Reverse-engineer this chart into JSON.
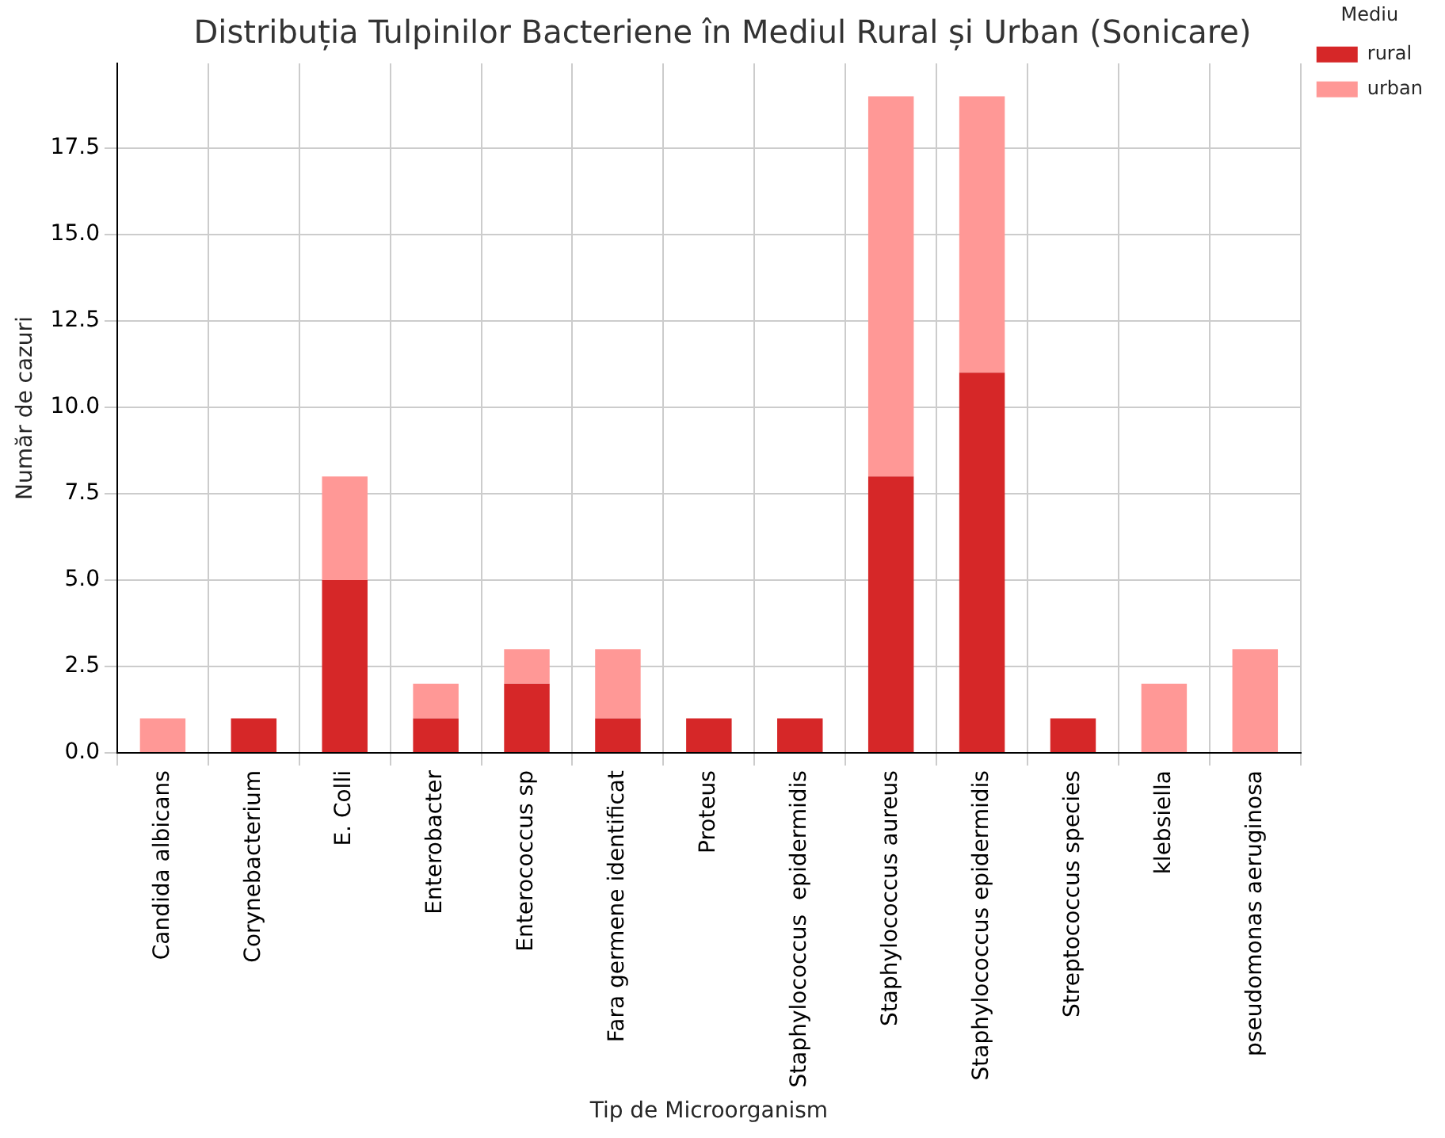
{
  "chart_data": {
    "type": "bar",
    "title": "Distribuția Tulpinilor Bacteriene în Mediul Rural și Urban (Sonicare)",
    "xlabel": "Tip de Microorganism",
    "ylabel": "Număr de cazuri",
    "legend_title": "Mediu",
    "categories": [
      "Candida albicans",
      "Corynebacterium",
      "E. Colli",
      "Enterobacter",
      "Enterococcus sp",
      "Fara germene identificat",
      "Proteus",
      "Staphylococcus  epidermidis",
      "Staphylococcus aureus",
      "Staphylococcus epidermidis",
      "Streptococcus species",
      "klebsiella",
      "pseudomonas aeruginosa"
    ],
    "series": [
      {
        "name": "rural",
        "color": "#d62728",
        "values": [
          0,
          1,
          5,
          1,
          2,
          1,
          1,
          1,
          8,
          11,
          1,
          0,
          0
        ]
      },
      {
        "name": "urban",
        "color": "#ff9896",
        "values": [
          1,
          0,
          3,
          1,
          1,
          2,
          0,
          0,
          11,
          8,
          0,
          2,
          3
        ]
      }
    ],
    "stacked": true,
    "ylim": [
      0,
      19.95
    ],
    "yticks": [
      {
        "value": 0,
        "label": "0.0"
      },
      {
        "value": 2.5,
        "label": "2.5"
      },
      {
        "value": 5,
        "label": "5.0"
      },
      {
        "value": 7.5,
        "label": "7.5"
      },
      {
        "value": 10,
        "label": "10.0"
      },
      {
        "value": 12.5,
        "label": "12.5"
      },
      {
        "value": 15,
        "label": "15.0"
      },
      {
        "value": 17.5,
        "label": "17.5"
      }
    ],
    "grid": true,
    "legend": "top right"
  }
}
